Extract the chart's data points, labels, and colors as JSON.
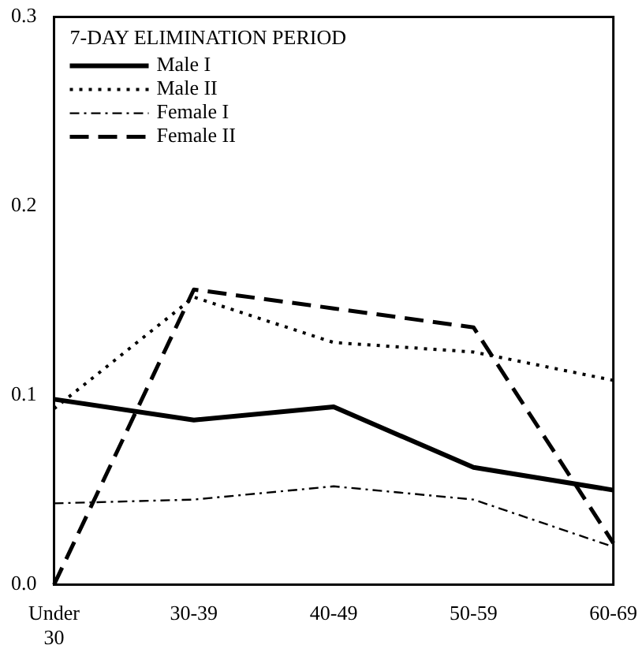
{
  "chart_data": {
    "type": "line",
    "legend_title": "7-DAY ELIMINATION PERIOD",
    "categories": [
      "Under 30",
      "30-39",
      "40-49",
      "50-59",
      "60-69"
    ],
    "ylim": [
      0,
      0.3
    ],
    "yticks": [
      {
        "value": 0,
        "label": "0.0"
      },
      0.1,
      0.2,
      0.3
    ],
    "grid": false,
    "legend": "top left",
    "marker": "none",
    "series": [
      {
        "name": "Male I",
        "color": "#000000",
        "line_style": "solid",
        "values": [
          0.098,
          0.087,
          0.094,
          0.062,
          0.05
        ]
      },
      {
        "name": "Male II",
        "color": "#000000",
        "line_style": "dotted",
        "values": [
          0.093,
          0.152,
          0.128,
          0.123,
          0.108
        ]
      },
      {
        "name": "Female I",
        "color": "#000000",
        "line_style": "dashdot",
        "values": [
          0.043,
          0.045,
          0.052,
          0.045,
          0.02
        ]
      },
      {
        "name": "Female II",
        "color": "#000000",
        "line_style": "dashed",
        "values": [
          0,
          0.156,
          0.146,
          0.136,
          0.022
        ]
      }
    ]
  }
}
